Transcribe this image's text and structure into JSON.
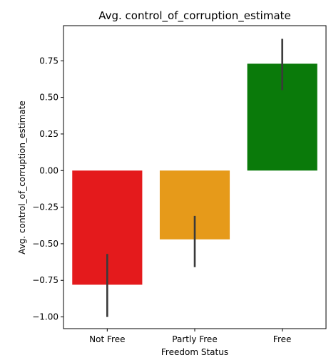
{
  "chart_data": {
    "type": "bar",
    "title": "Avg. control_of_corruption_estimate",
    "xlabel": "Freedom Status",
    "ylabel": "Avg. control_of_corruption_estimate",
    "categories": [
      "Not Free",
      "Partly Free",
      "Free"
    ],
    "values": [
      -0.78,
      -0.47,
      0.73
    ],
    "error_low": [
      -1.0,
      -0.66,
      0.55
    ],
    "error_high": [
      -0.57,
      -0.31,
      0.9
    ],
    "colors": [
      "#e41a1c",
      "#e69a1a",
      "#0a7a0a"
    ],
    "error_color": "#3a3a3a",
    "ylim": [
      -1.08,
      0.99
    ],
    "yticks": [
      -1.0,
      -0.75,
      -0.5,
      -0.25,
      0.0,
      0.25,
      0.5,
      0.75
    ],
    "ytick_labels": [
      "−1.00",
      "−0.75",
      "−0.50",
      "−0.25",
      "0.00",
      "0.25",
      "0.50",
      "0.75"
    ],
    "grid": false,
    "legend": "none"
  }
}
